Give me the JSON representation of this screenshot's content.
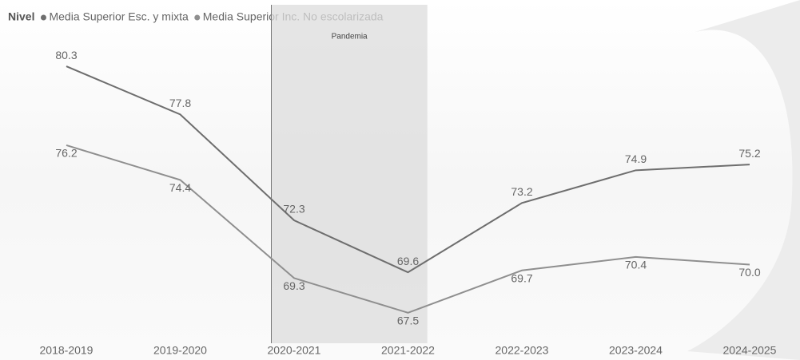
{
  "chart_data": {
    "type": "line",
    "legend_title": "Nivel",
    "categories": [
      "2018-2019",
      "2019-2020",
      "2020-2021",
      "2021-2022",
      "2022-2023",
      "2023-2024",
      "2024-2025"
    ],
    "series": [
      {
        "name": "Media Superior Esc. y mixta",
        "color": "#6e6e6e",
        "values": [
          80.3,
          77.8,
          72.3,
          69.6,
          73.2,
          74.9,
          75.2
        ]
      },
      {
        "name": "Media Superior Inc. No escolarizada",
        "color": "#8f8f8f",
        "values": [
          76.2,
          74.4,
          69.3,
          67.5,
          69.7,
          70.4,
          70.0
        ],
        "value_labels": [
          "76.2",
          "74.4",
          "69.3",
          "67.5",
          "69.7",
          "70.4",
          "70.0"
        ]
      }
    ],
    "annotation": "Pandemia",
    "ylim": [
      66,
      82.5
    ]
  }
}
